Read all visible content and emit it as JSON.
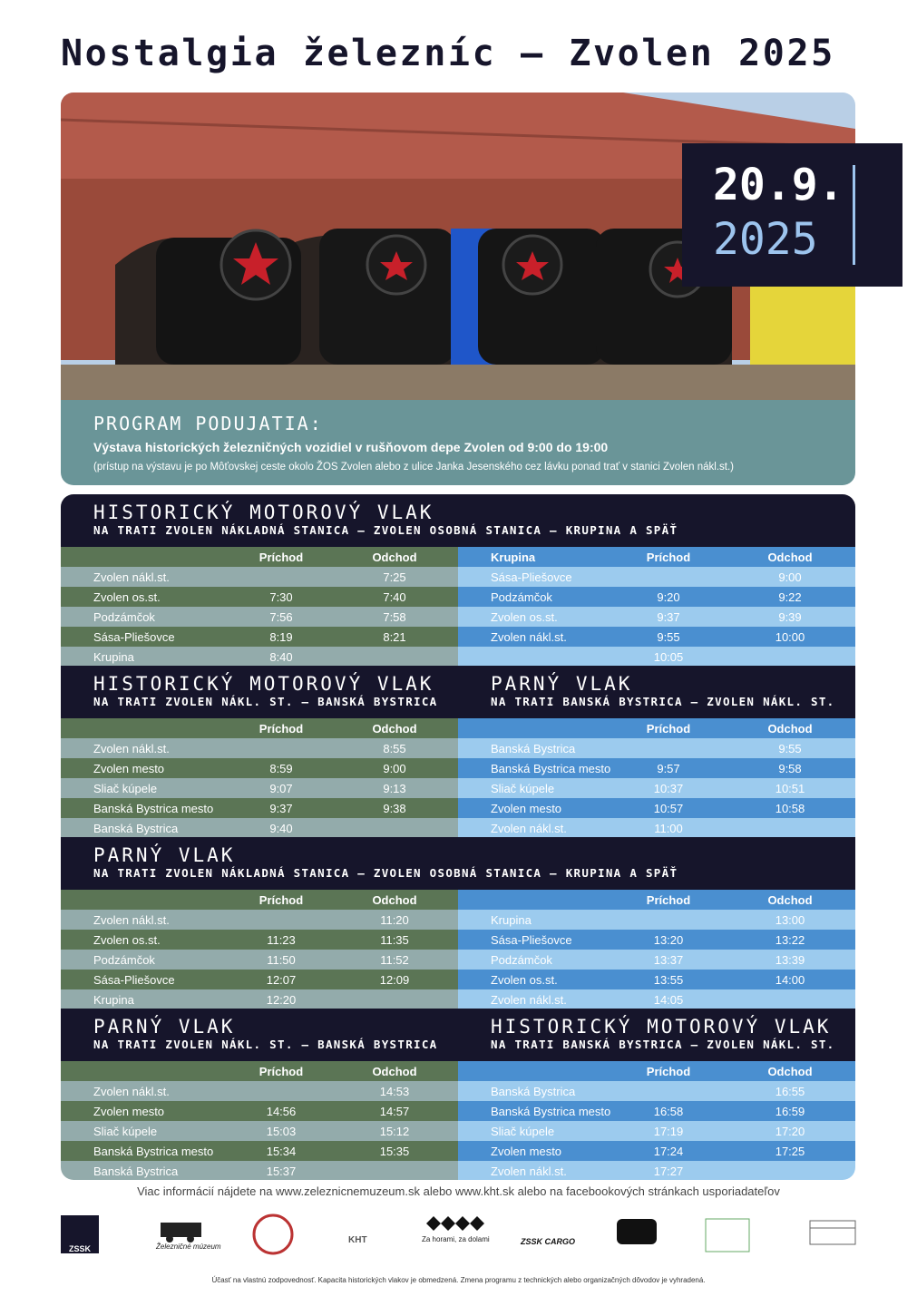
{
  "header": {
    "title": "Nostalgia železníc – Zvolen 2025",
    "date_day": "20.9.",
    "date_year": "2025"
  },
  "program": {
    "heading": "PROGRAM PODUJATIA:",
    "line1": "Výstava historických železničných vozidiel v rušňovom depe Zvolen od 9:00 do 19:00",
    "line2": "(prístup na výstavu je po Môťovskej ceste okolo ŽOS Zvolen alebo z ulice Janka Jesenského cez lávku ponad trať v stanici Zvolen nákl.st.)"
  },
  "timetables": [
    {
      "title": "HISTORICKÝ MOTOROVÝ VLAK",
      "subtitle": "NA TRATI ZVOLEN NÁKLADNÁ STANICA – ZVOLEN OSOBNÁ STANICA – KRUPINA A SPÄŤ",
      "tables": [
        {
          "columns": [
            null,
            "Príchod",
            "Odchod"
          ],
          "rows": [
            [
              "Zvolen nákl.st.",
              null,
              "7:25"
            ],
            [
              "Zvolen os.st.",
              "7:30",
              "7:40"
            ],
            [
              "Podzámčok",
              "7:56",
              "7:58"
            ],
            [
              "Sása-Pliešovce",
              "8:19",
              "8:21"
            ],
            [
              "Krupina",
              "8:40",
              null
            ]
          ]
        },
        {
          "columns": [
            "Krupina",
            "Príchod",
            "Odchod"
          ],
          "rows": [
            [
              "Sása-Pliešovce",
              null,
              "9:00"
            ],
            [
              "Podzámčok",
              "9:20",
              "9:22"
            ],
            [
              "Zvolen os.st.",
              "9:37",
              "9:39"
            ],
            [
              "Zvolen nákl.st.",
              "9:55",
              "10:00"
            ],
            [
              null,
              "10:05",
              null
            ]
          ]
        }
      ]
    },
    {
      "tables": [
        {
          "title": "HISTORICKÝ MOTOROVÝ VLAK",
          "subtitle": "NA TRATI ZVOLEN NÁKL. ST. – BANSKÁ BYSTRICA",
          "columns": [
            null,
            "Príchod",
            "Odchod"
          ],
          "rows": [
            [
              "Zvolen nákl.st.",
              null,
              "8:55"
            ],
            [
              "Zvolen mesto",
              "8:59",
              "9:00"
            ],
            [
              "Sliač kúpele",
              "9:07",
              "9:13"
            ],
            [
              "Banská Bystrica mesto",
              "9:37",
              "9:38"
            ],
            [
              "Banská Bystrica",
              "9:40",
              null
            ]
          ]
        },
        {
          "title": "PARNÝ VLAK",
          "subtitle": "NA TRATI BANSKÁ BYSTRICA – ZVOLEN NÁKL. ST.",
          "columns": [
            null,
            "Príchod",
            "Odchod"
          ],
          "rows": [
            [
              "Banská Bystrica",
              null,
              "9:55"
            ],
            [
              "Banská Bystrica mesto",
              "9:57",
              "9:58"
            ],
            [
              "Sliač kúpele",
              "10:37",
              "10:51"
            ],
            [
              "Zvolen mesto",
              "10:57",
              "10:58"
            ],
            [
              "Zvolen nákl.st.",
              "11:00",
              null
            ]
          ]
        }
      ]
    },
    {
      "title": "PARNÝ VLAK",
      "subtitle": "NA TRATI ZVOLEN NÁKLADNÁ STANICA – ZVOLEN OSOBNÁ STANICA – KRUPINA A SPÄŤ",
      "tables": [
        {
          "columns": [
            null,
            "Príchod",
            "Odchod"
          ],
          "rows": [
            [
              "Zvolen nákl.st.",
              null,
              "11:20"
            ],
            [
              "Zvolen os.st.",
              "11:23",
              "11:35"
            ],
            [
              "Podzámčok",
              "11:50",
              "11:52"
            ],
            [
              "Sása-Pliešovce",
              "12:07",
              "12:09"
            ],
            [
              "Krupina",
              "12:20",
              null
            ]
          ]
        },
        {
          "columns": [
            null,
            "Príchod",
            "Odchod"
          ],
          "rows": [
            [
              "Krupina",
              null,
              "13:00"
            ],
            [
              "Sása-Pliešovce",
              "13:20",
              "13:22"
            ],
            [
              "Podzámčok",
              "13:37",
              "13:39"
            ],
            [
              "Zvolen os.st.",
              "13:55",
              "14:00"
            ],
            [
              "Zvolen nákl.st.",
              "14:05",
              null
            ]
          ]
        }
      ]
    },
    {
      "tables": [
        {
          "title": "PARNÝ VLAK",
          "subtitle": "NA TRATI ZVOLEN NÁKL. ST. – BANSKÁ BYSTRICA",
          "columns": [
            null,
            "Príchod",
            "Odchod"
          ],
          "rows": [
            [
              "Zvolen nákl.st.",
              null,
              "14:53"
            ],
            [
              "Zvolen mesto",
              "14:56",
              "14:57"
            ],
            [
              "Sliač kúpele",
              "15:03",
              "15:12"
            ],
            [
              "Banská Bystrica mesto",
              "15:34",
              "15:35"
            ],
            [
              "Banská Bystrica",
              "15:37",
              null
            ]
          ]
        },
        {
          "title": "HISTORICKÝ MOTOROVÝ VLAK",
          "subtitle": "NA TRATI BANSKÁ BYSTRICA – ZVOLEN NÁKL. ST.",
          "columns": [
            null,
            "Príchod",
            "Odchod"
          ],
          "rows": [
            [
              "Banská Bystrica",
              null,
              "16:55"
            ],
            [
              "Banská Bystrica mesto",
              "16:58",
              "16:59"
            ],
            [
              "Sliač kúpele",
              "17:19",
              "17:20"
            ],
            [
              "Zvolen mesto",
              "17:24",
              "17:25"
            ],
            [
              "Zvolen nákl.st.",
              "17:27",
              null
            ]
          ]
        }
      ]
    }
  ],
  "footer": {
    "info": "Viac informácií nájdete na www.zeleznicnemuzeum.sk alebo www.kht.sk alebo na facebookových stránkach usporiadateľov",
    "logos": [
      "ZSSK",
      "Železničné múzeum",
      "KHT",
      "Za horami, za dolami",
      "ZSSK CARGO"
    ],
    "disclaimer": "Účasť na vlastnú zodpovednosť. Kapacita historických vlakov je obmedzená. Zmena programu z technických alebo organizačných dôvodov je vyhradená."
  }
}
